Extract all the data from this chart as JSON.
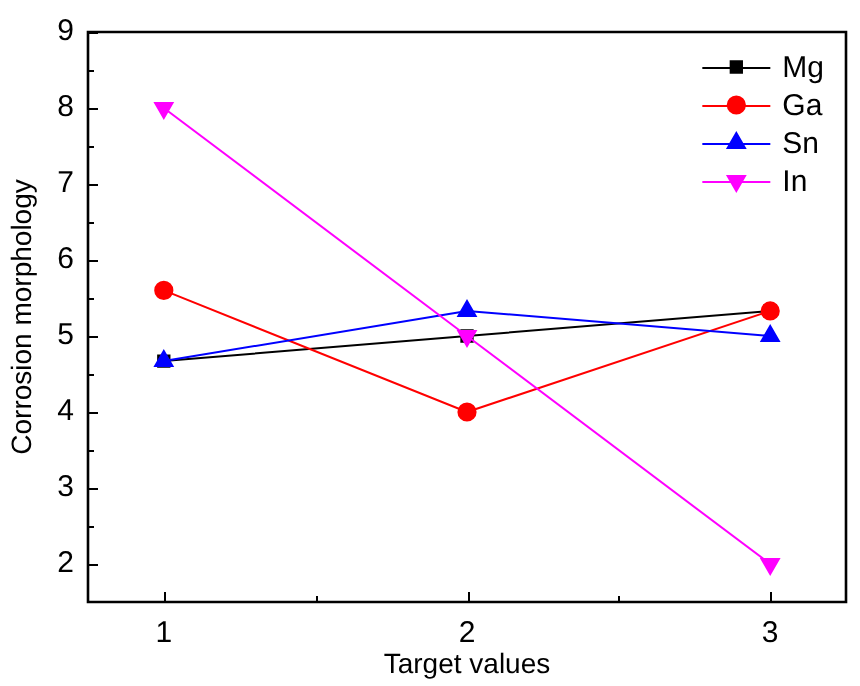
{
  "chart_data": {
    "type": "line",
    "xlabel": "Target values",
    "ylabel": "Corrosion morphology",
    "x": [
      1,
      2,
      3
    ],
    "xlim": [
      0.75,
      3.25
    ],
    "xticks": [
      1,
      {
        "value": 1.5,
        "label": null
      },
      2,
      {
        "value": 2.5,
        "label": null
      },
      3
    ],
    "ylim": [
      1.5,
      9
    ],
    "yticks": [
      2,
      {
        "value": 2.5,
        "label": null
      },
      3,
      {
        "value": 3.5,
        "label": null
      },
      4,
      {
        "value": 4.5,
        "label": null
      },
      5,
      {
        "value": 5.5,
        "label": null
      },
      6,
      {
        "value": 6.5,
        "label": null
      },
      7,
      {
        "value": 7.5,
        "label": null
      },
      8,
      {
        "value": 8.5,
        "label": null
      },
      9
    ],
    "series": [
      {
        "name": "Mg",
        "color": "#000000",
        "marker": "square",
        "values": [
          4.67,
          5.0,
          5.33
        ]
      },
      {
        "name": "Ga",
        "color": "#ff0000",
        "marker": "circle",
        "values": [
          5.6,
          4.0,
          5.33
        ]
      },
      {
        "name": "Sn",
        "color": "#0000ff",
        "marker": "triangle",
        "values": [
          4.67,
          5.33,
          5.0
        ]
      },
      {
        "name": "In",
        "color": "#ff00ff",
        "marker": "triangle-down",
        "values": [
          8.0,
          5.0,
          2.0
        ]
      }
    ],
    "legend": "top right",
    "grid": false,
    "line_style": "solid"
  }
}
